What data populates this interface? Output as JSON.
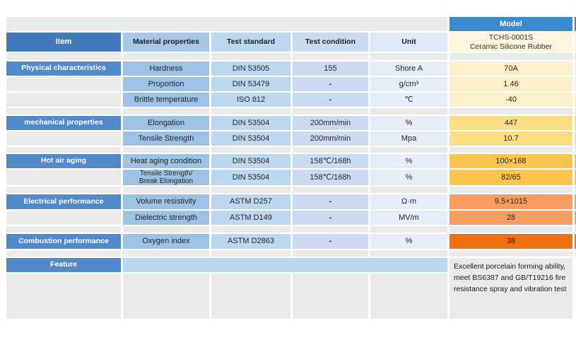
{
  "table": {
    "columns": {
      "item": "Item",
      "material": "Material properties",
      "standard": "Test standard",
      "condition": "Test condition",
      "unit": "Unit",
      "model": "Model"
    },
    "model": {
      "line1": "TCHS-0001S",
      "line2": "Ceramic Silicone Rubber"
    },
    "rows": [
      {
        "item": "Physical characteristics",
        "material": "Hardness",
        "standard": "DIN 53505",
        "condition": "155",
        "unit": "Shore A",
        "model": "70A"
      },
      {
        "item": "",
        "material": "Proportion",
        "standard": "DIN 53479",
        "condition": "-",
        "unit": "g/cm³",
        "model": "1.46"
      },
      {
        "item": "",
        "material": "Brittle temperature",
        "standard": "ISO 812",
        "condition": "-",
        "unit": "℃",
        "model": "-40"
      },
      {
        "item": "mechanical properties",
        "material": "Elongation",
        "standard": "DIN 53504",
        "condition": "200mm/min",
        "unit": "%",
        "model": "447"
      },
      {
        "item": "",
        "material": "Tensile Strength",
        "standard": "DIN 53504",
        "condition": "200mm/min",
        "unit": "Mpa",
        "model": "10.7"
      },
      {
        "item": "Hot air aging",
        "material": "Heat aging condition",
        "standard": "DIN 53504",
        "condition": "158℃/168h",
        "unit": "%",
        "model": "100×168"
      },
      {
        "item": "",
        "material": "Tensile Strength/",
        "material2": "Break Elongation",
        "standard": "DIN 53504",
        "condition": "158℃/168h",
        "unit": "%",
        "model": "82/65"
      },
      {
        "item": "Electrical performance",
        "material": "Volume resistivity",
        "standard": "ASTM D257",
        "condition": "-",
        "unit": "Ω·m",
        "model": "9.5×1015"
      },
      {
        "item": "",
        "material": "Dielectric strength",
        "standard": "ASTM D149",
        "condition": "-",
        "unit": "MV/m",
        "model": "28"
      },
      {
        "item": "Combustion performance",
        "material": "Oxygen index",
        "standard": "ASTM D2863",
        "condition": "-",
        "unit": "%",
        "model": "38"
      }
    ],
    "feature": {
      "label": "Feature",
      "text": "Excellent porcelain forming ability, meet BS6387 and GB/T19216 fire resistance spray and vibration test"
    },
    "colors": {
      "item_header": "#4479bc",
      "category_cell": "#5289ca",
      "model_header": "#3d89ce",
      "material_col": "#9cc2e5",
      "standard_col": "#bdd7ee",
      "condition_col": "#ccdaf1",
      "unit_col": "#e6ecf8",
      "model_value_bg": "#fdf5df",
      "tier_physical": "#fdefca",
      "tier_mechanical": "#fcdd84",
      "tier_hot_air": "#fcc44d",
      "tier_electrical": "#f99e61",
      "tier_combustion": "#f2700d",
      "feature_band": "#b9d8f1",
      "spacer_gray": "#eaeaea"
    }
  }
}
